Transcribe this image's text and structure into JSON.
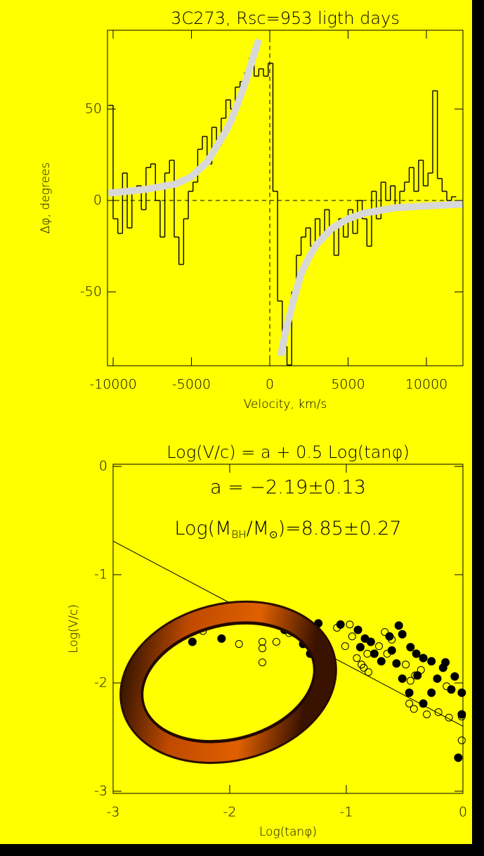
{
  "chart_data": [
    {
      "type": "step",
      "title": "3C273, Rsc=953 ligth days",
      "xlabel": "Velocity, km/s",
      "ylabel": "Δφ, degrees",
      "xlim": [
        -10360,
        12330
      ],
      "ylim": [
        -90.4,
        93.1
      ],
      "xticks": [
        -10000,
        -5000,
        0,
        5000,
        10000
      ],
      "yticks": [
        -50,
        0,
        50
      ],
      "series": [
        {
          "style": "step",
          "color": "#000000",
          "x": [
            -10300,
            -10000,
            -9700,
            -9400,
            -9100,
            -8800,
            -8500,
            -8200,
            -7900,
            -7600,
            -7300,
            -7000,
            -6700,
            -6400,
            -6100,
            -5800,
            -5500,
            -5200,
            -4900,
            -4600,
            -4300,
            -4000,
            -3700,
            -3400,
            -3100,
            -2800,
            -2500,
            -2200,
            -1900,
            -1600,
            -1300,
            -1000,
            -700,
            -400,
            -100,
            200,
            500,
            800,
            1100,
            1400,
            1700,
            2000,
            2300,
            2600,
            2900,
            3200,
            3500,
            3800,
            4100,
            4400,
            4700,
            5000,
            5300,
            5600,
            5900,
            6200,
            6500,
            6800,
            7100,
            7400,
            7700,
            8000,
            8300,
            8600,
            8900,
            9200,
            9500,
            9800,
            10100,
            10400,
            10700,
            11000,
            11300,
            11600
          ],
          "values": [
            52,
            -10,
            -18,
            15,
            -15,
            5,
            8,
            -5,
            18,
            20,
            0,
            -20,
            15,
            22,
            -20,
            -35,
            -10,
            5,
            10,
            28,
            35,
            20,
            40,
            30,
            45,
            55,
            50,
            62,
            65,
            70,
            78,
            68,
            72,
            68,
            75,
            5,
            -55,
            -80,
            -90,
            -50,
            -30,
            -20,
            -15,
            -25,
            -10,
            -20,
            -5,
            -15,
            -30,
            -10,
            -20,
            -5,
            -18,
            0,
            -10,
            -25,
            5,
            -10,
            10,
            0,
            8,
            -5,
            5,
            10,
            18,
            5,
            22,
            8,
            15,
            60,
            12,
            5,
            0,
            2
          ]
        },
        {
          "style": "line",
          "color": "#d8d8d8",
          "x": [
            -10300,
            -8000,
            -6000,
            -5000,
            -4000,
            -3000,
            -2500,
            -2000,
            -1500,
            -1000,
            -700,
            0,
            700,
            1000,
            1500,
            2000,
            2500,
            3000,
            4000,
            5000,
            6000,
            8000,
            10000,
            12300
          ],
          "values": [
            4,
            6,
            9,
            13,
            21,
            35,
            43,
            54,
            66,
            80,
            88,
            null,
            -85,
            -72,
            -55,
            -40,
            -31,
            -24,
            -15,
            -10,
            -7,
            -4,
            -3,
            -2
          ]
        }
      ]
    },
    {
      "type": "scatter",
      "title": "Log(V/c) = a + 0.5 Log(tanφ)",
      "xlabel": "Log(tanφ)",
      "ylabel": "Log(V/c)",
      "annotation": "a = −2.19±0.13",
      "mass_label_parts": [
        "Log(M",
        "BH",
        "/M",
        "⊙",
        ")=8.85±0.27"
      ],
      "xlim": [
        -3,
        0
      ],
      "ylim": [
        -3.02,
        0.02
      ],
      "xticks": [
        -3,
        -2,
        -1,
        0
      ],
      "yticks": [
        -3,
        -2,
        -1,
        0
      ],
      "fit": {
        "x": [
          -3,
          0
        ],
        "values": [
          -0.69,
          -2.4
        ]
      },
      "series": [
        {
          "filled": true,
          "color": "#000000",
          "x": [
            -2.32,
            -2.07,
            -1.53,
            -1.37,
            -1.31,
            -1.24,
            -1.05,
            -0.9,
            -0.88,
            -0.84,
            -0.79,
            -0.76,
            -0.7,
            -0.63,
            -0.61,
            -0.57,
            -0.55,
            -0.52,
            -0.45,
            -0.4,
            -0.39,
            -0.34,
            -0.27,
            -0.22,
            -0.17,
            -0.15,
            -0.07,
            -0.1,
            -0.01,
            -0.01,
            -0.04,
            -0.34,
            -0.27,
            -0.46,
            -0.52
          ],
          "values": [
            -1.62,
            -1.59,
            -1.51,
            -1.64,
            -1.73,
            -1.45,
            -1.46,
            -1.51,
            -1.67,
            -1.59,
            -1.62,
            -1.73,
            -1.8,
            -1.57,
            -1.7,
            -1.82,
            -1.47,
            -1.55,
            -1.67,
            -1.73,
            -1.93,
            -1.77,
            -1.8,
            -1.96,
            -1.86,
            -1.81,
            -1.94,
            -2.06,
            -2.09,
            -2.29,
            -2.69,
            -2.19,
            -2.09,
            -2.09,
            -1.96
          ]
        },
        {
          "filled": false,
          "color": "#000000",
          "x": [
            -2.23,
            -1.92,
            -1.72,
            -1.72,
            -1.72,
            -1.6,
            -1.49,
            -1.08,
            -0.97,
            -1.01,
            -0.95,
            -0.91,
            -0.87,
            -0.85,
            -0.82,
            -0.81,
            -0.72,
            -0.67,
            -0.65,
            -0.61,
            -0.49,
            -0.45,
            -0.41,
            -0.36,
            -0.46,
            -0.42,
            -0.31,
            -0.21,
            -0.12,
            -0.01,
            -0.01,
            -0.14
          ],
          "values": [
            -1.52,
            -1.64,
            -1.62,
            -1.68,
            -1.81,
            -1.62,
            -1.54,
            -1.49,
            -1.46,
            -1.66,
            -1.57,
            -1.77,
            -1.83,
            -1.86,
            -1.73,
            -1.9,
            -1.66,
            -1.53,
            -1.73,
            -1.6,
            -1.83,
            -1.98,
            -1.93,
            -1.88,
            -2.19,
            -2.24,
            -2.29,
            -2.27,
            -2.32,
            -2.31,
            -2.53,
            -2.03
          ]
        }
      ]
    }
  ]
}
